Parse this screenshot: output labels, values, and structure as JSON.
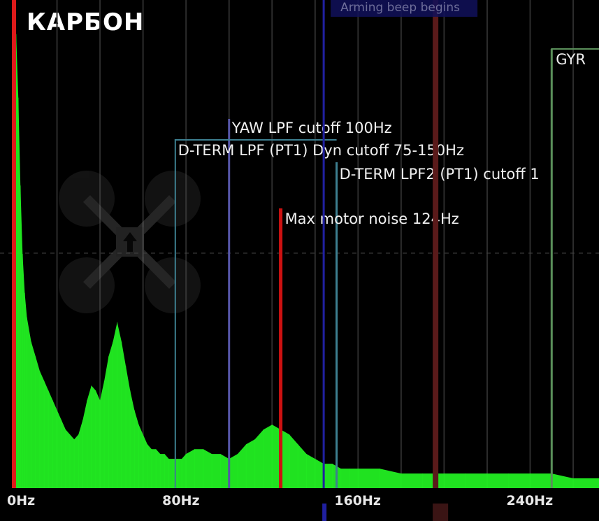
{
  "title": "КАРБОН",
  "chart_data": {
    "type": "area",
    "xlabel": "",
    "ylabel": "",
    "xlim": [
      0,
      272
    ],
    "x_ticks": [
      {
        "value": 0,
        "label": "0Hz"
      },
      {
        "value": 80,
        "label": "80Hz"
      },
      {
        "value": 160,
        "label": "160Hz"
      },
      {
        "value": 240,
        "label": "240Hz"
      }
    ],
    "grid_x": [
      0,
      20,
      40,
      60,
      80,
      100,
      120,
      140,
      160,
      180,
      200,
      220,
      240,
      260
    ],
    "event_label": "Arming beep begins",
    "gyro_label": "GYR",
    "series": [
      {
        "color": "#22ee22",
        "x": [
          0,
          1,
          2,
          3,
          4,
          5,
          6,
          8,
          10,
          12,
          14,
          16,
          18,
          20,
          22,
          24,
          26,
          28,
          30,
          32,
          34,
          36,
          38,
          40,
          42,
          44,
          46,
          48,
          50,
          52,
          54,
          56,
          58,
          60,
          62,
          64,
          66,
          68,
          70,
          72,
          74,
          76,
          78,
          80,
          84,
          88,
          92,
          96,
          100,
          104,
          108,
          112,
          116,
          120,
          124,
          128,
          132,
          136,
          140,
          144,
          148,
          152,
          156,
          160,
          170,
          180,
          190,
          200,
          210,
          220,
          230,
          240,
          250,
          260,
          272
        ],
        "y": [
          0.95,
          0.93,
          0.8,
          0.62,
          0.48,
          0.4,
          0.35,
          0.3,
          0.27,
          0.24,
          0.22,
          0.2,
          0.18,
          0.16,
          0.14,
          0.12,
          0.11,
          0.1,
          0.11,
          0.14,
          0.18,
          0.21,
          0.2,
          0.18,
          0.22,
          0.27,
          0.3,
          0.34,
          0.3,
          0.25,
          0.2,
          0.16,
          0.13,
          0.11,
          0.09,
          0.08,
          0.08,
          0.07,
          0.07,
          0.06,
          0.06,
          0.06,
          0.06,
          0.07,
          0.08,
          0.08,
          0.07,
          0.07,
          0.06,
          0.07,
          0.09,
          0.1,
          0.12,
          0.13,
          0.12,
          0.11,
          0.09,
          0.07,
          0.06,
          0.05,
          0.05,
          0.04,
          0.04,
          0.04,
          0.04,
          0.03,
          0.03,
          0.03,
          0.03,
          0.03,
          0.03,
          0.03,
          0.03,
          0.02,
          0.02
        ]
      }
    ],
    "markers": [
      {
        "x": 0,
        "label": "",
        "color": "#dd1a1a",
        "style": "solid"
      },
      {
        "x": 100,
        "label": "YAW LPF cutoff 100Hz",
        "color": "#5656a8",
        "style": "solid"
      },
      {
        "x": 75,
        "label": "D-TERM LPF (PT1) Dyn cutoff 75-150Hz",
        "color": "#3d7f90",
        "style": "box",
        "x2": 150
      },
      {
        "x": 150,
        "label": "D-TERM LPF2 (PT1) cutoff 1",
        "color": "#3d7f90",
        "style": "solid"
      },
      {
        "x": 124,
        "label": "Max motor noise 124Hz",
        "color": "#cc1111",
        "style": "solid"
      },
      {
        "x": 144,
        "label": "",
        "color": "#2020a0",
        "style": "solid"
      },
      {
        "x": 196,
        "label": "",
        "color": "#5a1a1a",
        "style": "solid"
      },
      {
        "x": 250,
        "label": "",
        "color": "#5a8f5a",
        "style": "solid"
      }
    ]
  }
}
